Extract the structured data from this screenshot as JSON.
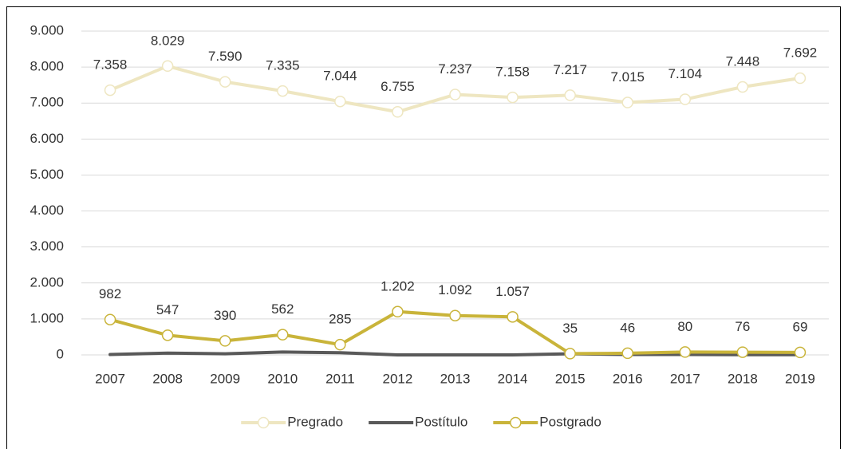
{
  "chart_data": {
    "type": "line",
    "categories": [
      "2007",
      "2008",
      "2009",
      "2010",
      "2011",
      "2012",
      "2013",
      "2014",
      "2015",
      "2016",
      "2017",
      "2018",
      "2019"
    ],
    "series": [
      {
        "name": "Pregrado",
        "color": "#eee6c1",
        "marker": true,
        "values": [
          7358,
          8029,
          7590,
          7335,
          7044,
          6755,
          7237,
          7158,
          7217,
          7015,
          7104,
          7448,
          7692
        ],
        "value_labels": [
          "7.358",
          "8.029",
          "7.590",
          "7.335",
          "7.044",
          "6.755",
          "7.237",
          "7.158",
          "7.217",
          "7.015",
          "7.104",
          "7.448",
          "7.692"
        ]
      },
      {
        "name": "Postítulo",
        "color": "#595959",
        "marker": false,
        "values": [
          10,
          50,
          30,
          80,
          60,
          0,
          0,
          0,
          30,
          10,
          10,
          5,
          5
        ]
      },
      {
        "name": "Postgrado",
        "color": "#c9b43a",
        "marker": true,
        "values": [
          982,
          547,
          390,
          562,
          285,
          1202,
          1092,
          1057,
          35,
          46,
          80,
          76,
          69
        ],
        "value_labels": [
          "982",
          "547",
          "390",
          "562",
          "285",
          "1.202",
          "1.092",
          "1.057",
          "35",
          "46",
          "80",
          "76",
          "69"
        ]
      }
    ],
    "ylim": [
      0,
      9000
    ],
    "yticks": [
      {
        "value": 0,
        "label": "0"
      },
      {
        "value": 1000,
        "label": "1.000"
      },
      {
        "value": 2000,
        "label": "2.000"
      },
      {
        "value": 3000,
        "label": "3.000"
      },
      {
        "value": 4000,
        "label": "4.000"
      },
      {
        "value": 5000,
        "label": "5.000"
      },
      {
        "value": 6000,
        "label": "6.000"
      },
      {
        "value": 7000,
        "label": "7.000"
      },
      {
        "value": 8000,
        "label": "8.000"
      },
      {
        "value": 9000,
        "label": "9.000"
      }
    ],
    "grid": true,
    "legend": "bottom"
  }
}
